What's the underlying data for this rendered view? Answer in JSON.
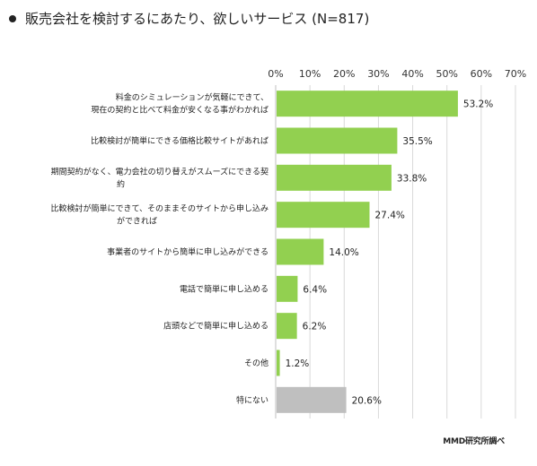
{
  "title": "販売会社を検討するにあたり、欲しいサービス (N=817)",
  "source": "MMD研究所調べ",
  "chart_data": {
    "type": "bar",
    "orientation": "horizontal",
    "title": "販売会社を検討するにあたり、欲しいサービス (N=817)",
    "xlim": [
      0,
      70
    ],
    "ticks": [
      "0%",
      "10%",
      "20%",
      "30%",
      "40%",
      "50%",
      "60%",
      "70%"
    ],
    "grid": true,
    "colors": {
      "main": "#92D050",
      "other": "#BFBFBF"
    },
    "categories": [
      [
        "料金のシミュレーションが気軽にできて、",
        "現在の契約と比べて料金が安くなる事がわかれば"
      ],
      [
        "比較検討が簡単にできる価格比較サイトがあれば"
      ],
      [
        "期間契約がなく、電力会社の切り替えがスムーズにできる契",
        "約"
      ],
      [
        "比較検討が簡単にできて、そのままそのサイトから申し込み",
        "ができれば"
      ],
      [
        "事業者のサイトから簡単に申し込みができる"
      ],
      [
        "電話で簡単に申し込める"
      ],
      [
        "店頭などで簡単に申し込める"
      ],
      [
        "その他"
      ],
      [
        "特にない"
      ]
    ],
    "values": [
      53.2,
      35.5,
      33.8,
      27.4,
      14.0,
      6.4,
      6.2,
      1.2,
      20.6
    ],
    "labels": [
      "53.2%",
      "35.5%",
      "33.8%",
      "27.4%",
      "14.0%",
      "6.4%",
      "6.2%",
      "1.2%",
      "20.6%"
    ],
    "bar_colors": [
      "#92D050",
      "#92D050",
      "#92D050",
      "#92D050",
      "#92D050",
      "#92D050",
      "#92D050",
      "#92D050",
      "#BFBFBF"
    ]
  }
}
